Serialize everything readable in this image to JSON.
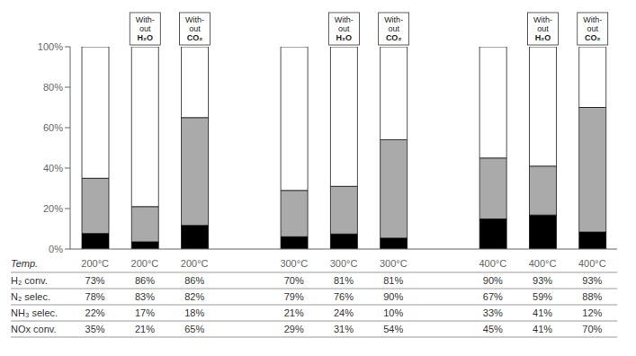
{
  "chart_data": {
    "type": "bar",
    "stacked": true,
    "grid": false,
    "xlabel": "Temp.",
    "categories": [
      "200°C",
      "200°C",
      "200°C",
      "300°C",
      "300°C",
      "300°C",
      "400°C",
      "400°C",
      "400°C"
    ],
    "series": [
      {
        "color": "#000000",
        "values": [
          7.7,
          3.57,
          11.7,
          6.09,
          7.44,
          5.4,
          14.85,
          16.81,
          8.4
        ]
      },
      {
        "color": "#aaaaaa",
        "values": [
          27.3,
          17.43,
          53.3,
          22.91,
          23.56,
          48.6,
          30.15,
          24.19,
          61.6
        ]
      },
      {
        "color": "#ffffff",
        "values": [
          65,
          79,
          35,
          71,
          69,
          46,
          55,
          59,
          30
        ]
      }
    ],
    "ylim": [
      0,
      100
    ],
    "yticks": [
      {
        "value": 0,
        "label": "0%"
      },
      {
        "value": 20,
        "label": "20%"
      },
      {
        "value": 40,
        "label": "40%"
      },
      {
        "value": 60,
        "label": "60%"
      },
      {
        "value": 80,
        "label": "80%"
      },
      {
        "value": 100,
        "label": "100%"
      }
    ],
    "annotations": [
      {
        "category_index": 1,
        "text": "With-\nout\nH₂O"
      },
      {
        "category_index": 2,
        "text": "With-\nout\nCO₂"
      },
      {
        "category_index": 4,
        "text": "With-\nout\nH₂O"
      },
      {
        "category_index": 5,
        "text": "With-\nout\nCO₂"
      },
      {
        "category_index": 7,
        "text": "With-\nout\nH₂O"
      },
      {
        "category_index": 8,
        "text": "With-\nout\nCO₂"
      }
    ],
    "table": {
      "row_labels": [
        "H₂ conv.",
        "N₂ selec.",
        "NH₃ selec.",
        "NOx conv."
      ],
      "rows": [
        [
          "73%",
          "86%",
          "86%",
          "70%",
          "81%",
          "81%",
          "90%",
          "93%",
          "93%"
        ],
        [
          "78%",
          "83%",
          "82%",
          "79%",
          "76%",
          "90%",
          "67%",
          "59%",
          "88%"
        ],
        [
          "22%",
          "17%",
          "18%",
          "21%",
          "24%",
          "10%",
          "33%",
          "41%",
          "12%"
        ],
        [
          "35%",
          "21%",
          "65%",
          "29%",
          "31%",
          "54%",
          "45%",
          "41%",
          "70%"
        ]
      ]
    }
  }
}
